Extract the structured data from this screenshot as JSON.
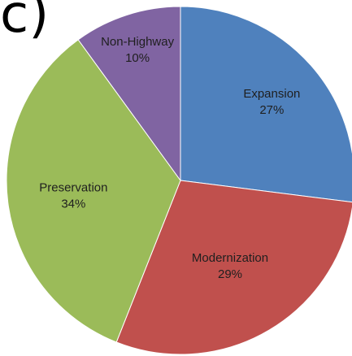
{
  "panel_letter": "c)",
  "chart_data": {
    "type": "pie",
    "title": "",
    "legend": "none",
    "slices": [
      {
        "label": "Expansion",
        "percent_label": "27%",
        "value": 27,
        "color": "#4f81bd"
      },
      {
        "label": "Modernization",
        "percent_label": "29%",
        "value": 29,
        "color": "#c0504d"
      },
      {
        "label": "Preservation",
        "percent_label": "34%",
        "value": 34,
        "color": "#9bbb59"
      },
      {
        "label": "Non-Highway",
        "percent_label": "10%",
        "value": 10,
        "color": "#8064a2"
      }
    ]
  }
}
